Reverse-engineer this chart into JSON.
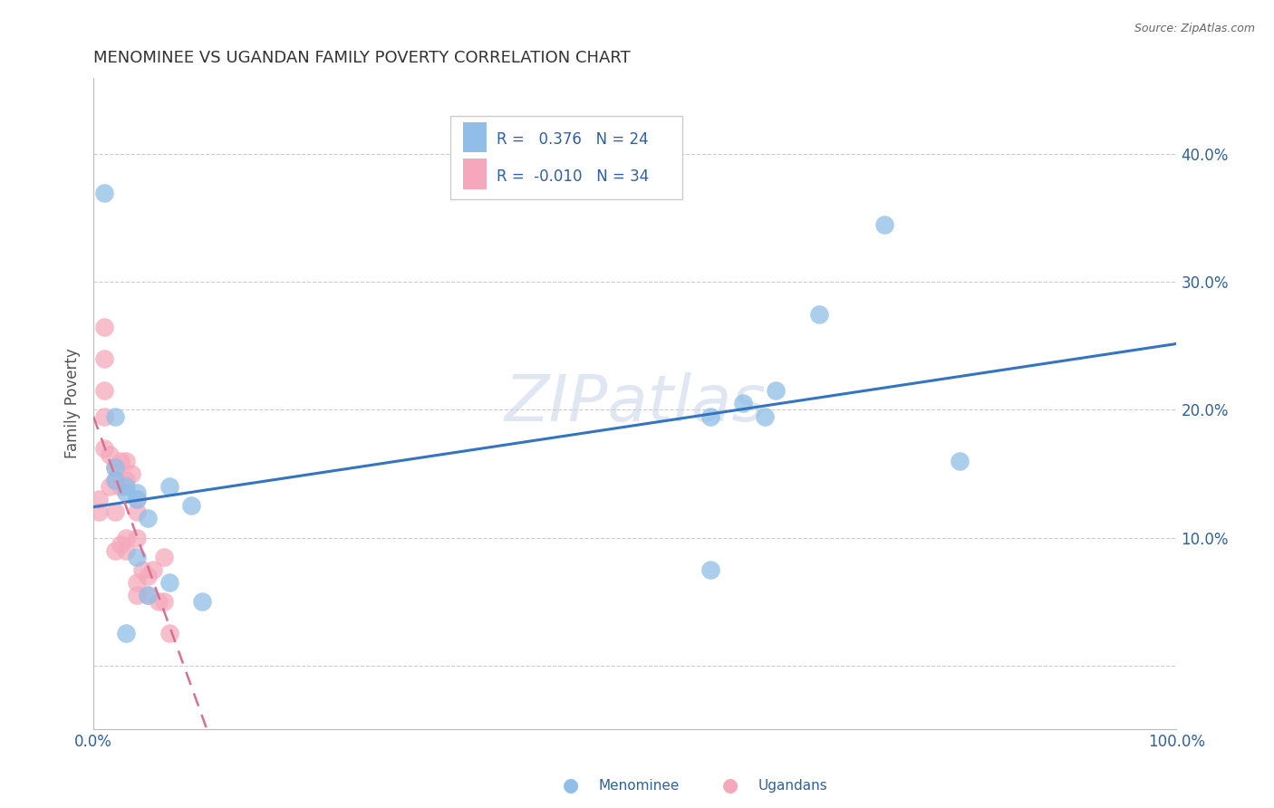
{
  "title": "MENOMINEE VS UGANDAN FAMILY POVERTY CORRELATION CHART",
  "source": "Source: ZipAtlas.com",
  "ylabel": "Family Poverty",
  "xlim": [
    0.0,
    1.0
  ],
  "ylim": [
    -0.05,
    0.46
  ],
  "xticks": [
    0.0,
    0.25,
    0.5,
    0.75,
    1.0
  ],
  "xticklabels": [
    "0.0%",
    "",
    "",
    "",
    "100.0%"
  ],
  "yticks": [
    0.0,
    0.1,
    0.2,
    0.3,
    0.4
  ],
  "yticklabels": [
    "",
    "10.0%",
    "20.0%",
    "30.0%",
    "40.0%"
  ],
  "grid_color": "#cccccc",
  "background_color": "#ffffff",
  "watermark_text": "ZIPatlas",
  "menominee_r": 0.376,
  "menominee_n": 24,
  "ugandan_r": -0.01,
  "ugandan_n": 34,
  "menominee_color": "#90BEE8",
  "ugandan_color": "#F5A8BC",
  "menominee_line_color": "#3375C0",
  "ugandan_line_color": "#D87090",
  "menominee_x": [
    0.01,
    0.02,
    0.02,
    0.02,
    0.03,
    0.03,
    0.04,
    0.04,
    0.05,
    0.07,
    0.07,
    0.09,
    0.1,
    0.57,
    0.6,
    0.62,
    0.63,
    0.67,
    0.73,
    0.8,
    0.57,
    0.04,
    0.05,
    0.03
  ],
  "menominee_y": [
    0.37,
    0.195,
    0.155,
    0.145,
    0.14,
    0.135,
    0.13,
    0.085,
    0.115,
    0.14,
    0.065,
    0.125,
    0.05,
    0.195,
    0.205,
    0.195,
    0.215,
    0.275,
    0.345,
    0.16,
    0.075,
    0.135,
    0.055,
    0.025
  ],
  "ugandan_x": [
    0.005,
    0.005,
    0.01,
    0.01,
    0.01,
    0.01,
    0.01,
    0.015,
    0.015,
    0.02,
    0.02,
    0.02,
    0.02,
    0.025,
    0.025,
    0.025,
    0.03,
    0.03,
    0.03,
    0.03,
    0.035,
    0.04,
    0.04,
    0.04,
    0.04,
    0.04,
    0.045,
    0.05,
    0.05,
    0.055,
    0.06,
    0.065,
    0.065,
    0.07
  ],
  "ugandan_y": [
    0.13,
    0.12,
    0.265,
    0.24,
    0.215,
    0.195,
    0.17,
    0.165,
    0.14,
    0.155,
    0.145,
    0.12,
    0.09,
    0.16,
    0.14,
    0.095,
    0.16,
    0.145,
    0.1,
    0.09,
    0.15,
    0.13,
    0.12,
    0.1,
    0.065,
    0.055,
    0.075,
    0.07,
    0.055,
    0.075,
    0.05,
    0.085,
    0.05,
    0.025
  ],
  "title_color": "#333333",
  "axis_label_color": "#555555",
  "tick_color": "#3060A0",
  "legend_text_color": "#3060A0",
  "source_color": "#666666"
}
